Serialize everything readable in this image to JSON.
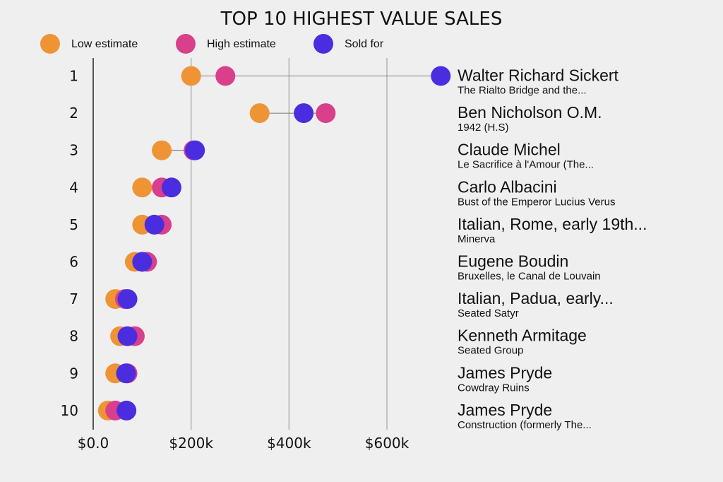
{
  "chart_data": {
    "type": "dot-plot",
    "title": "TOP 10 HIGHEST VALUE SALES",
    "legend": [
      {
        "key": "low",
        "label": "Low estimate",
        "color": "#ee9434"
      },
      {
        "key": "high",
        "label": "High estimate",
        "color": "#d93f8b"
      },
      {
        "key": "sold",
        "label": "Sold for",
        "color": "#4a2ddf"
      }
    ],
    "legend_position": "top",
    "xlim": [
      0,
      700000
    ],
    "xticks": [
      {
        "value": 0,
        "label": "$0.0"
      },
      {
        "value": 200000,
        "label": "$200k"
      },
      {
        "value": 400000,
        "label": "$400k"
      },
      {
        "value": 600000,
        "label": "$600k"
      }
    ],
    "grid": true,
    "rows": [
      {
        "rank": "1",
        "artist": "Walter Richard Sickert",
        "work": "The Rialto Bridge and the...",
        "low": 200000,
        "high": 270000,
        "sold": 710000
      },
      {
        "rank": "2",
        "artist": "Ben Nicholson O.M.",
        "work": "1942 (H.S)",
        "low": 340000,
        "high": 475000,
        "sold": 430000
      },
      {
        "rank": "3",
        "artist": "Claude Michel",
        "work": "Le Sacrifice à l'Amour (The...",
        "low": 140000,
        "high": 205000,
        "sold": 208000
      },
      {
        "rank": "4",
        "artist": "Carlo Albacini",
        "work": "Bust of the Emperor Lucius Verus",
        "low": 100000,
        "high": 140000,
        "sold": 160000
      },
      {
        "rank": "5",
        "artist": "Italian, Rome, early 19th...",
        "work": "Minerva",
        "low": 100000,
        "high": 140000,
        "sold": 125000
      },
      {
        "rank": "6",
        "artist": "Eugene Boudin",
        "work": "Bruxelles, le Canal de Louvain",
        "low": 85000,
        "high": 110000,
        "sold": 100000
      },
      {
        "rank": "7",
        "artist": "Italian, Padua, early...",
        "work": "Seated Satyr",
        "low": 45000,
        "high": 65000,
        "sold": 70000
      },
      {
        "rank": "8",
        "artist": "Kenneth Armitage",
        "work": "Seated Group",
        "low": 55000,
        "high": 85000,
        "sold": 70000
      },
      {
        "rank": "9",
        "artist": "James Pryde",
        "work": "Cowdray Ruins",
        "low": 45000,
        "high": 70000,
        "sold": 67000
      },
      {
        "rank": "10",
        "artist": "James Pryde",
        "work": "Construction (formerly The...",
        "low": 30000,
        "high": 45000,
        "sold": 68000
      }
    ]
  }
}
